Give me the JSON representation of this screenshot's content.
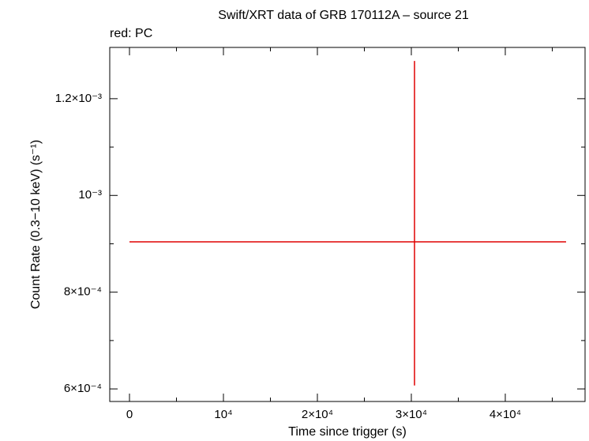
{
  "chart_data": {
    "type": "scatter",
    "title": "Swift/XRT data of GRB 170112A – source 21",
    "annotation": "red: PC",
    "x_label": "Time since trigger (s)",
    "y_label": "Count Rate (0.3−10 keV) (s⁻¹)",
    "series": [
      {
        "name": "PC",
        "color": "#e00000",
        "x": [
          30336
        ],
        "x_err_minus": [
          30336
        ],
        "x_err_plus": [
          16134
        ],
        "values": [
          0.000904
        ],
        "y_err_minus": [
          0.000297
        ],
        "y_err_plus": [
          0.000374
        ]
      }
    ],
    "xlim": [
      -2100,
      48490
    ],
    "ylim": [
      0.000574,
      0.001306
    ],
    "xticks": [
      0,
      {
        "value": 10000,
        "label": "10⁴"
      },
      {
        "value": 20000,
        "label": "2×10⁴"
      },
      {
        "value": 30000,
        "label": "3×10⁴"
      },
      {
        "value": 40000,
        "label": "4×10⁴"
      }
    ],
    "xticks_minor": [
      5000,
      15000,
      25000,
      35000,
      45000
    ],
    "yticks": [
      {
        "value": 0.0006,
        "label": "6×10⁻⁴"
      },
      {
        "value": 0.0008,
        "label": "8×10⁻⁴"
      },
      {
        "value": 0.001,
        "label": "10⁻³"
      },
      {
        "value": 0.0012,
        "label": "1.2×10⁻³"
      }
    ],
    "yticks_minor": [
      0.0007,
      0.0009,
      0.0011
    ]
  }
}
